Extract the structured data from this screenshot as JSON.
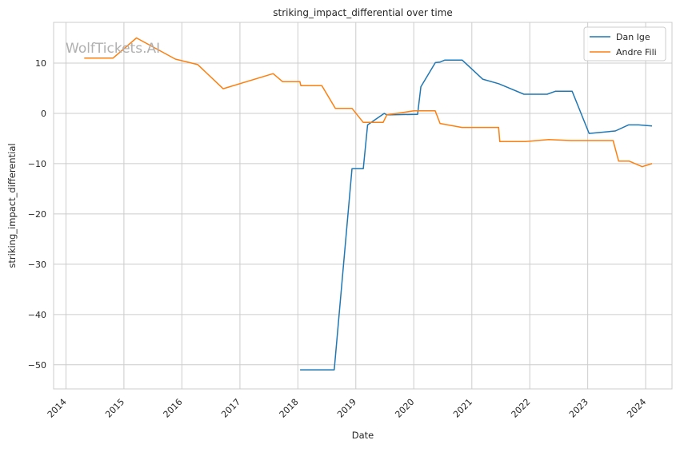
{
  "watermark": "WolfTickets.AI",
  "colors": {
    "grid": "#cccccc",
    "axes_edge": "#cccccc",
    "background": "#ffffff",
    "legend_edge": "#cccccc"
  },
  "chart_data": {
    "type": "line",
    "title": "striking_impact_differential over time",
    "xlabel": "Date",
    "ylabel": "striking_impact_differential",
    "grid": true,
    "legend_position": "top-right",
    "xlim": [
      "2013-10-15",
      "2024-06-15"
    ],
    "ylim": [
      -54.8,
      18.1
    ],
    "x_ticks": [
      "2014",
      "2015",
      "2016",
      "2017",
      "2018",
      "2019",
      "2020",
      "2021",
      "2022",
      "2023",
      "2024"
    ],
    "y_ticks": [
      10,
      0,
      -10,
      -20,
      -30,
      -40,
      -50
    ],
    "y_tick_labels": [
      "10",
      "0",
      "−10",
      "−20",
      "−30",
      "−40",
      "−50"
    ],
    "series": [
      {
        "name": "Dan Ige",
        "color": "#1f77b4",
        "x": [
          "2018-01-15",
          "2018-08-18",
          "2018-12-08",
          "2019-02-17",
          "2019-03-16",
          "2019-06-29",
          "2019-07-15",
          "2020-01-25",
          "2020-02-15",
          "2020-05-16",
          "2020-06-15",
          "2020-07-15",
          "2020-11-01",
          "2021-03-10",
          "2021-06-19",
          "2021-11-25",
          "2022-04-20",
          "2022-06-11",
          "2022-09-25",
          "2023-01-10",
          "2023-06-24",
          "2023-09-15",
          "2023-11-18",
          "2024-02-10"
        ],
        "y": [
          -51,
          -51,
          -11,
          -11,
          -2.3,
          0,
          -0.3,
          -0.2,
          5.3,
          10.1,
          10.2,
          10.6,
          10.6,
          6.8,
          5.9,
          3.8,
          3.8,
          4.4,
          4.4,
          -4,
          -3.5,
          -2.3,
          -2.3,
          -2.5
        ]
      },
      {
        "name": "Andre Fili",
        "color": "#ff7f0e",
        "x": [
          "2014-04-26",
          "2014-10-25",
          "2015-03-21",
          "2015-11-21",
          "2016-04-10",
          "2016-09-17",
          "2017-07-29",
          "2017-09-27",
          "2018-01-14",
          "2018-01-20",
          "2018-06-01",
          "2018-08-25",
          "2018-12-08",
          "2019-02-17",
          "2019-06-22",
          "2019-07-15",
          "2020-01-01",
          "2020-05-15",
          "2020-06-15",
          "2020-10-31",
          "2021-06-19",
          "2021-06-26",
          "2021-12-05",
          "2022-05-01",
          "2022-09-15",
          "2023-06-10",
          "2023-07-15",
          "2023-09-20",
          "2023-12-10",
          "2024-02-10"
        ],
        "y": [
          11,
          11,
          15,
          10.8,
          9.7,
          4.9,
          7.9,
          6.3,
          6.3,
          5.5,
          5.5,
          1,
          1,
          -1.8,
          -1.8,
          -0.3,
          0.5,
          0.5,
          -2,
          -2.8,
          -2.8,
          -5.6,
          -5.6,
          -5.2,
          -5.4,
          -5.4,
          -9.5,
          -9.5,
          -10.6,
          -10
        ]
      }
    ]
  }
}
